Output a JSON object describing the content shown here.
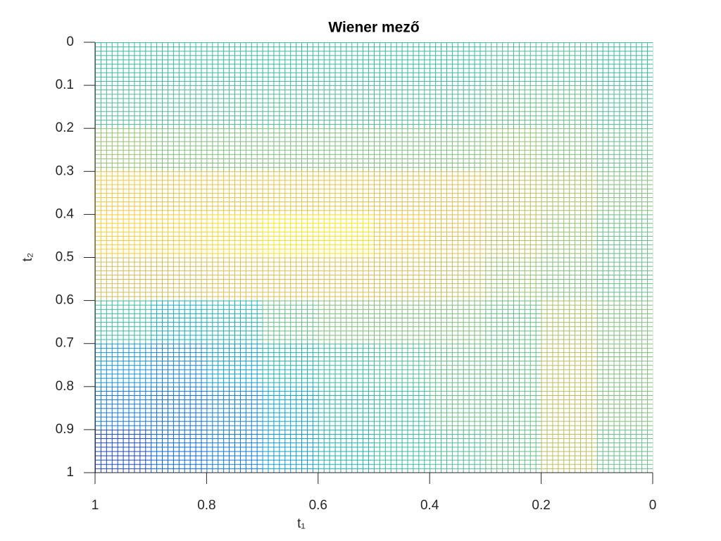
{
  "chart_data": {
    "type": "mesh",
    "title": "Wiener mező",
    "xlabel": "t₁",
    "ylabel": "t₂",
    "x": [
      1,
      0.9,
      0.8,
      0.7,
      0.6,
      0.5,
      0.4,
      0.3,
      0.2,
      0.1,
      0
    ],
    "y": [
      0,
      0.1,
      0.2,
      0.3,
      0.4,
      0.5,
      0.6,
      0.7,
      0.8,
      0.9,
      1
    ],
    "z": [
      [
        0,
        0,
        0,
        0,
        0,
        0,
        0,
        0.1,
        0.1,
        0
      ],
      [
        0.1,
        0.1,
        0.1,
        0.1,
        0.1,
        0.1,
        0.1,
        0.2,
        0.2,
        0.1
      ],
      [
        0.4,
        0.3,
        0.3,
        0.3,
        0.3,
        0.3,
        0.3,
        0.4,
        0.3,
        0.2
      ],
      [
        1.0,
        0.9,
        0.9,
        0.9,
        0.9,
        0.8,
        0.8,
        0.6,
        0.5,
        0.3
      ],
      [
        1.1,
        1.1,
        1.2,
        1.3,
        1.3,
        1.0,
        0.8,
        0.6,
        0.4,
        0.2
      ],
      [
        0.7,
        0.7,
        0.8,
        0.8,
        0.8,
        0.7,
        0.6,
        0.4,
        0.3,
        0.2
      ],
      [
        0.0,
        -0.3,
        -0.2,
        0.2,
        0.3,
        0.3,
        0.3,
        0.2,
        0.5,
        0.3
      ],
      [
        -0.6,
        -0.8,
        -0.5,
        -0.2,
        0.0,
        0.1,
        0.2,
        0.2,
        0.6,
        0.3
      ],
      [
        -0.9,
        -1.0,
        -0.8,
        -0.4,
        -0.1,
        0.0,
        0.2,
        0.2,
        0.6,
        0.3
      ],
      [
        -1.3,
        -1.1,
        -0.9,
        -0.5,
        -0.2,
        0.0,
        0.1,
        0.2,
        0.6,
        0.2
      ]
    ],
    "zlim": [
      -1.5,
      1.5
    ],
    "colormap": [
      "#352a87",
      "#0363e1",
      "#1485d4",
      "#06a7c6",
      "#38b99e",
      "#92bf73",
      "#d9ba56",
      "#fcce2e",
      "#f9fb0e"
    ],
    "xlim": [
      1,
      0
    ],
    "xticks": [
      1,
      0.8,
      0.6,
      0.4,
      0.2,
      0
    ],
    "ylim": [
      0,
      1
    ],
    "yticks": [
      0,
      0.1,
      0.2,
      0.3,
      0.4,
      0.5,
      0.6,
      0.7,
      0.8,
      0.9,
      1
    ]
  }
}
